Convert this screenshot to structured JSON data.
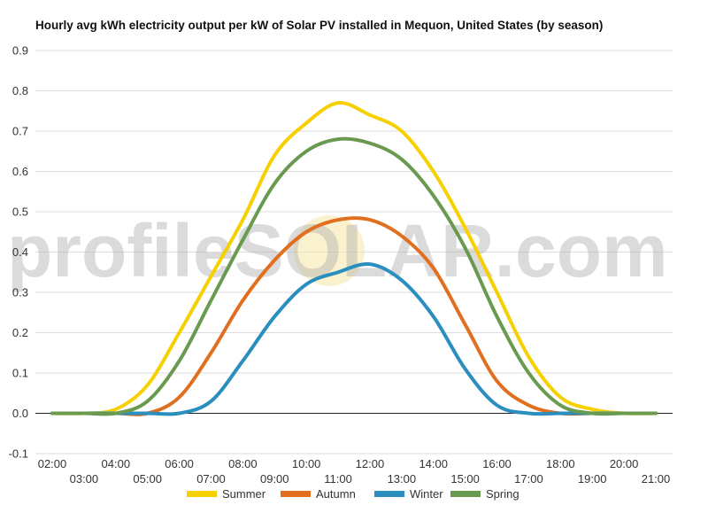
{
  "chart_data": {
    "type": "line",
    "title": "Hourly avg kWh electricity output per kW of Solar PV installed in Mequon, United States (by season)",
    "xlabel": "",
    "ylabel": "",
    "ylim": [
      -0.1,
      0.9
    ],
    "y_ticks": [
      "-0.1",
      "0.0",
      "0.1",
      "0.2",
      "0.3",
      "0.4",
      "0.5",
      "0.6",
      "0.7",
      "0.8",
      "0.9"
    ],
    "x_ticks_row1": [
      "02:00",
      "04:00",
      "06:00",
      "08:00",
      "10:00",
      "12:00",
      "14:00",
      "16:00",
      "18:00",
      "20:00"
    ],
    "x_ticks_row2": [
      "03:00",
      "05:00",
      "07:00",
      "09:00",
      "11:00",
      "13:00",
      "15:00",
      "17:00",
      "19:00",
      "21:00"
    ],
    "x": [
      2,
      3,
      4,
      5,
      6,
      7,
      8,
      9,
      10,
      11,
      12,
      13,
      14,
      15,
      16,
      17,
      18,
      19,
      20,
      21
    ],
    "grid": true,
    "legend_position": "bottom",
    "series": [
      {
        "name": "Summer",
        "color": "#f7d000",
        "values": [
          0.0,
          0.0,
          0.01,
          0.07,
          0.2,
          0.34,
          0.48,
          0.64,
          0.72,
          0.77,
          0.74,
          0.7,
          0.6,
          0.46,
          0.3,
          0.14,
          0.04,
          0.01,
          0.0,
          0.0
        ]
      },
      {
        "name": "Autumn",
        "color": "#e07020",
        "values": [
          0.0,
          0.0,
          0.0,
          0.0,
          0.04,
          0.15,
          0.28,
          0.38,
          0.45,
          0.48,
          0.48,
          0.44,
          0.36,
          0.22,
          0.08,
          0.02,
          0.0,
          0.0,
          0.0,
          0.0
        ]
      },
      {
        "name": "Winter",
        "color": "#2a8ebe",
        "values": [
          0.0,
          0.0,
          0.0,
          0.0,
          0.0,
          0.03,
          0.13,
          0.24,
          0.32,
          0.35,
          0.37,
          0.33,
          0.24,
          0.11,
          0.02,
          0.0,
          0.0,
          0.0,
          0.0,
          0.0
        ]
      },
      {
        "name": "Spring",
        "color": "#6a9a50",
        "values": [
          0.0,
          0.0,
          0.0,
          0.03,
          0.13,
          0.28,
          0.43,
          0.57,
          0.65,
          0.68,
          0.67,
          0.63,
          0.54,
          0.41,
          0.24,
          0.1,
          0.02,
          0.0,
          0.0,
          0.0
        ]
      }
    ]
  },
  "watermark": {
    "text": "profileSOLAR.com"
  }
}
